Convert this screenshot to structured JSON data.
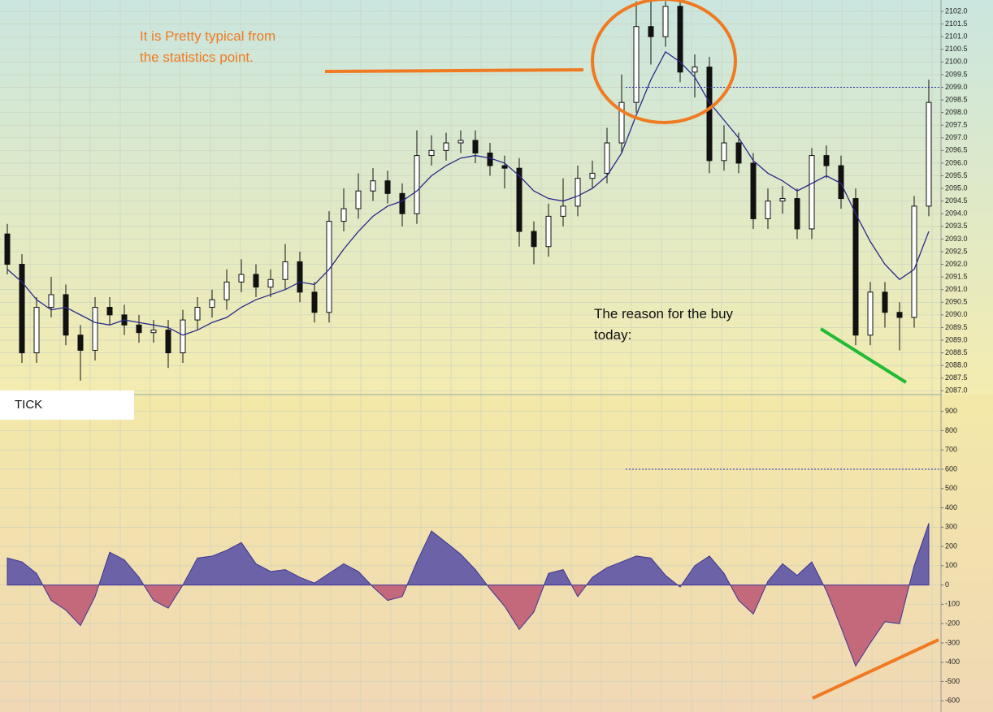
{
  "chart_data": [
    {
      "type": "candlestick",
      "annotations": [
        "It is Pretty typical from",
        "the statistics point.",
        "The reason for the buy",
        "today:"
      ],
      "open": [
        2093.2,
        2092.0,
        2088.5,
        2090.3,
        2090.8,
        2089.2,
        2088.6,
        2090.3,
        2090.0,
        2089.6,
        2089.3,
        2089.4,
        2088.5,
        2089.8,
        2090.3,
        2090.6,
        2091.3,
        2091.6,
        2091.1,
        2091.4,
        2092.1,
        2090.9,
        2090.1,
        2093.7,
        2094.2,
        2094.9,
        2095.3,
        2094.8,
        2094.0,
        2096.3,
        2096.5,
        2096.8,
        2096.9,
        2096.4,
        2095.9,
        2095.8,
        2093.3,
        2092.7,
        2093.9,
        2094.3,
        2095.4,
        2095.6,
        2096.8,
        2098.4,
        2101.4,
        2101.0,
        2102.2,
        2099.6,
        2099.8,
        2096.1,
        2096.8,
        2096.0,
        2093.8,
        2094.5,
        2094.6,
        2093.4,
        2096.3,
        2095.9,
        2094.6,
        2089.2,
        2090.9,
        2090.1,
        2089.9,
        2094.3
      ],
      "high": [
        2093.6,
        2092.4,
        2090.7,
        2091.5,
        2091.2,
        2089.6,
        2090.7,
        2090.7,
        2090.4,
        2090.0,
        2089.8,
        2089.8,
        2090.2,
        2090.7,
        2091.0,
        2091.8,
        2092.2,
        2092.0,
        2091.8,
        2092.8,
        2092.5,
        2091.3,
        2094.1,
        2095.0,
        2095.6,
        2095.8,
        2095.7,
        2095.2,
        2097.3,
        2097.1,
        2097.2,
        2097.3,
        2097.3,
        2096.8,
        2096.3,
        2096.2,
        2093.7,
        2094.4,
        2095.4,
        2095.9,
        2096.1,
        2097.4,
        2099.5,
        2102.4,
        2102.4,
        2102.4,
        2102.4,
        2100.3,
        2100.2,
        2097.5,
        2097.2,
        2096.4,
        2095.0,
        2095.1,
        2095.0,
        2096.6,
        2096.7,
        2096.3,
        2095.0,
        2091.3,
        2091.3,
        2090.5,
        2094.7,
        2099.3
      ],
      "low": [
        2091.6,
        2088.1,
        2088.1,
        2089.9,
        2088.8,
        2087.4,
        2088.2,
        2089.6,
        2089.2,
        2088.9,
        2088.9,
        2087.9,
        2088.1,
        2089.4,
        2089.9,
        2090.2,
        2090.9,
        2090.7,
        2090.7,
        2091.0,
        2090.5,
        2089.7,
        2089.7,
        2093.3,
        2093.8,
        2094.5,
        2094.4,
        2093.5,
        2093.6,
        2095.9,
        2096.1,
        2096.4,
        2096.0,
        2095.5,
        2095.0,
        2092.7,
        2092.0,
        2092.3,
        2093.5,
        2093.9,
        2095.0,
        2095.2,
        2096.4,
        2098.0,
        2099.9,
        2100.6,
        2099.2,
        2098.6,
        2095.6,
        2095.7,
        2095.6,
        2093.4,
        2093.4,
        2094.0,
        2093.0,
        2093.0,
        2095.4,
        2094.2,
        2088.8,
        2088.8,
        2089.5,
        2088.6,
        2089.5,
        2093.9
      ],
      "close": [
        2092.0,
        2088.5,
        2090.3,
        2090.8,
        2089.2,
        2088.6,
        2090.3,
        2090.0,
        2089.6,
        2089.3,
        2089.4,
        2088.5,
        2089.8,
        2090.3,
        2090.6,
        2091.3,
        2091.6,
        2091.1,
        2091.4,
        2092.1,
        2090.9,
        2090.1,
        2093.7,
        2094.2,
        2094.9,
        2095.3,
        2094.8,
        2094.0,
        2096.3,
        2096.5,
        2096.8,
        2096.9,
        2096.4,
        2095.9,
        2095.8,
        2093.3,
        2092.7,
        2093.9,
        2094.3,
        2095.4,
        2095.6,
        2096.8,
        2098.4,
        2101.4,
        2101.0,
        2102.2,
        2099.6,
        2099.8,
        2096.1,
        2096.8,
        2096.0,
        2093.8,
        2094.5,
        2094.6,
        2093.4,
        2096.3,
        2095.9,
        2094.6,
        2089.2,
        2090.9,
        2090.1,
        2089.9,
        2094.3,
        2098.4
      ],
      "ma": {
        "color": "#2a2a8c",
        "values": [
          2091.8,
          2091.3,
          2090.6,
          2090.2,
          2090.3,
          2090.0,
          2089.7,
          2089.6,
          2089.8,
          2089.7,
          2089.6,
          2089.5,
          2089.2,
          2089.4,
          2089.7,
          2089.9,
          2090.3,
          2090.6,
          2090.8,
          2091.0,
          2091.3,
          2091.2,
          2091.8,
          2092.6,
          2093.3,
          2093.9,
          2094.3,
          2094.5,
          2094.9,
          2095.5,
          2095.9,
          2096.2,
          2096.3,
          2096.2,
          2096.0,
          2095.5,
          2094.9,
          2094.6,
          2094.5,
          2094.7,
          2095.0,
          2095.5,
          2096.4,
          2097.9,
          2099.3,
          2100.4,
          2100.0,
          2099.4,
          2098.4,
          2097.7,
          2097.0,
          2096.1,
          2095.6,
          2095.3,
          2094.9,
          2095.2,
          2095.5,
          2095.2,
          2094.0,
          2092.9,
          2092.0,
          2091.4,
          2091.8,
          2093.3
        ]
      },
      "reference_line": 2099.0,
      "ylim": [
        2086.85,
        2102.45
      ],
      "yticks": [
        {
          "value": 2087,
          "label": "2087.0"
        },
        {
          "value": 2087.5,
          "label": "2087.5"
        },
        {
          "value": 2088,
          "label": "2088.0"
        },
        {
          "value": 2088.5,
          "label": "2088.5"
        },
        {
          "value": 2089,
          "label": "2089.0"
        },
        {
          "value": 2089.5,
          "label": "2089.5"
        },
        {
          "value": 2090,
          "label": "2090.0"
        },
        {
          "value": 2090.5,
          "label": "2090.5"
        },
        {
          "value": 2091,
          "label": "2091.0"
        },
        {
          "value": 2091.5,
          "label": "2091.5"
        },
        {
          "value": 2092,
          "label": "2092.0"
        },
        {
          "value": 2092.5,
          "label": "2092.5"
        },
        {
          "value": 2093,
          "label": "2093.0"
        },
        {
          "value": 2093.5,
          "label": "2093.5"
        },
        {
          "value": 2094,
          "label": "2094.0"
        },
        {
          "value": 2094.5,
          "label": "2094.5"
        },
        {
          "value": 2095,
          "label": "2095.0"
        },
        {
          "value": 2095.5,
          "label": "2095.5"
        },
        {
          "value": 2096,
          "label": "2096.0"
        },
        {
          "value": 2096.5,
          "label": "2096.5"
        },
        {
          "value": 2097,
          "label": "2097.0"
        },
        {
          "value": 2097.5,
          "label": "2097.5"
        },
        {
          "value": 2098,
          "label": "2098.0"
        },
        {
          "value": 2098.5,
          "label": "2098.5"
        },
        {
          "value": 2099,
          "label": "2099.0"
        },
        {
          "value": 2099.5,
          "label": "2099.5"
        },
        {
          "value": 2100,
          "label": "2100.0"
        },
        {
          "value": 2100.5,
          "label": "2100.5"
        },
        {
          "value": 2101,
          "label": "2101.0"
        },
        {
          "value": 2101.5,
          "label": "2101.5"
        },
        {
          "value": 2102,
          "label": "2102.0"
        }
      ],
      "grid": true
    },
    {
      "type": "area",
      "title": "TICK",
      "values": [
        140,
        120,
        60,
        -80,
        -130,
        -210,
        -60,
        170,
        130,
        40,
        -80,
        -120,
        0,
        140,
        150,
        180,
        220,
        110,
        70,
        80,
        40,
        10,
        60,
        110,
        70,
        -10,
        -80,
        -60,
        120,
        280,
        220,
        160,
        80,
        -20,
        -110,
        -230,
        -140,
        60,
        80,
        -60,
        40,
        90,
        120,
        150,
        140,
        50,
        -10,
        100,
        150,
        60,
        -80,
        -150,
        20,
        110,
        50,
        120,
        -30,
        -220,
        -420,
        -300,
        -190,
        -200,
        100,
        320
      ],
      "positive_color": "#6b62a8",
      "negative_color": "#c4687c",
      "line_color": "#3b3592",
      "reference_line": 600,
      "ylim": [
        -658,
        987
      ],
      "yticks": [
        -600,
        -500,
        -400,
        -300,
        -200,
        -100,
        0,
        100,
        200,
        300,
        400,
        500,
        600,
        700,
        800,
        900
      ],
      "grid": true
    }
  ]
}
